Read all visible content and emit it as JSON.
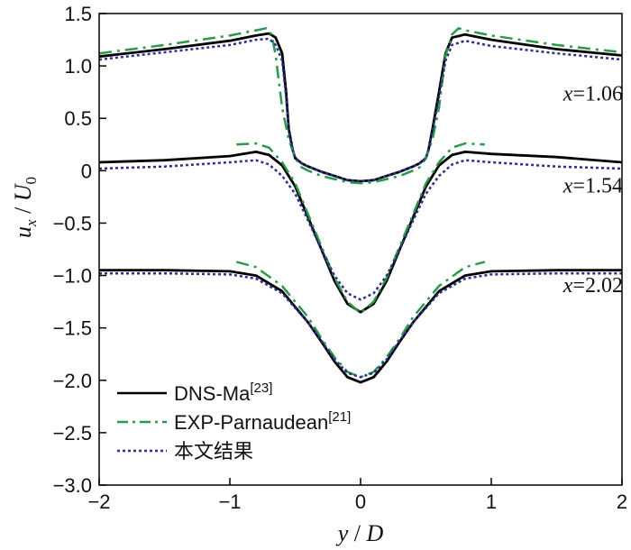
{
  "chart_data": {
    "type": "line",
    "title": "",
    "xlabel": "y/D",
    "ylabel": "u_x/U_0",
    "xlim": [
      -2,
      2
    ],
    "ylim": [
      -3.0,
      1.5
    ],
    "xticks": [
      -2,
      -1,
      0,
      1,
      2
    ],
    "xtick_labels": [
      "−2",
      "−1",
      "0",
      "1",
      "2"
    ],
    "yticks": [
      1.5,
      1.0,
      0.5,
      0,
      -0.5,
      -1.0,
      -1.5,
      -2.0,
      -2.5,
      -3.0
    ],
    "ytick_labels": [
      "1.5",
      "1.0",
      "0.5",
      "0",
      "−0.5",
      "−1.0",
      "−1.5",
      "−2.0",
      "−2.5",
      "−3.0"
    ],
    "grid": false,
    "legend_position": "bottom-left",
    "annotations": [
      {
        "text": "x=1.06",
        "x": 1.55,
        "y": 0.67
      },
      {
        "text": "x=1.54",
        "x": 1.55,
        "y": -0.21
      },
      {
        "text": "x=2.02",
        "x": 1.55,
        "y": -1.16
      }
    ],
    "series": [
      {
        "name": "DNS-Ma[23]",
        "style": "solid",
        "color": "#000000",
        "group": "x=1.06",
        "x": [
          -2.0,
          -1.5,
          -1.0,
          -0.8,
          -0.7,
          -0.65,
          -0.6,
          -0.57,
          -0.55,
          -0.52,
          -0.5,
          -0.45,
          -0.4,
          -0.3,
          -0.2,
          -0.1,
          0.0,
          0.1,
          0.2,
          0.3,
          0.4,
          0.45,
          0.5,
          0.52,
          0.55,
          0.6,
          0.65,
          0.7,
          0.8,
          1.0,
          1.5,
          2.0
        ],
        "y": [
          1.09,
          1.16,
          1.24,
          1.29,
          1.31,
          1.27,
          1.12,
          0.75,
          0.4,
          0.2,
          0.12,
          0.07,
          0.04,
          -0.01,
          -0.05,
          -0.09,
          -0.1,
          -0.09,
          -0.05,
          -0.01,
          0.04,
          0.07,
          0.12,
          0.2,
          0.4,
          0.75,
          1.12,
          1.27,
          1.3,
          1.25,
          1.16,
          1.1
        ]
      },
      {
        "name": "EXP-Parnaudean[21]",
        "style": "dashdot",
        "color": "#2a9a4a",
        "group": "x=1.06",
        "x": [
          -2.0,
          -1.5,
          -1.0,
          -0.8,
          -0.72,
          -0.68,
          -0.65,
          -0.6,
          -0.55,
          -0.5,
          -0.45,
          -0.4,
          -0.3,
          -0.2,
          -0.1,
          0.0,
          0.1,
          0.2,
          0.3,
          0.4,
          0.45,
          0.5,
          0.55,
          0.6,
          0.65,
          0.7,
          0.75,
          0.8,
          1.0,
          1.5,
          2.0
        ],
        "y": [
          1.12,
          1.2,
          1.29,
          1.34,
          1.36,
          1.3,
          1.1,
          0.6,
          0.3,
          0.12,
          0.03,
          0.0,
          -0.05,
          -0.08,
          -0.11,
          -0.12,
          -0.11,
          -0.08,
          -0.05,
          0.0,
          0.03,
          0.12,
          0.3,
          0.6,
          1.1,
          1.3,
          1.36,
          1.34,
          1.29,
          1.2,
          1.13
        ]
      },
      {
        "name": "本文结果",
        "style": "dotted",
        "color": "#2b2f8f",
        "group": "x=1.06",
        "x": [
          -2.0,
          -1.5,
          -1.0,
          -0.8,
          -0.7,
          -0.65,
          -0.6,
          -0.57,
          -0.55,
          -0.52,
          -0.5,
          -0.45,
          -0.4,
          -0.3,
          -0.2,
          -0.1,
          0.0,
          0.1,
          0.2,
          0.3,
          0.4,
          0.45,
          0.5,
          0.52,
          0.55,
          0.6,
          0.65,
          0.7,
          0.8,
          1.0,
          1.5,
          2.0
        ],
        "y": [
          1.06,
          1.13,
          1.2,
          1.25,
          1.26,
          1.2,
          1.05,
          0.7,
          0.38,
          0.2,
          0.12,
          0.07,
          0.04,
          -0.01,
          -0.05,
          -0.09,
          -0.1,
          -0.09,
          -0.05,
          -0.01,
          0.04,
          0.07,
          0.12,
          0.2,
          0.38,
          0.7,
          1.05,
          1.2,
          1.24,
          1.19,
          1.12,
          1.06
        ]
      },
      {
        "name": "DNS-Ma[23]",
        "style": "solid",
        "color": "#000000",
        "group": "x=1.54",
        "x": [
          -2.0,
          -1.5,
          -1.0,
          -0.8,
          -0.7,
          -0.6,
          -0.5,
          -0.4,
          -0.3,
          -0.2,
          -0.1,
          0.0,
          0.1,
          0.2,
          0.3,
          0.4,
          0.5,
          0.6,
          0.7,
          0.8,
          1.0,
          1.5,
          2.0
        ],
        "y": [
          0.08,
          0.1,
          0.14,
          0.18,
          0.15,
          0.05,
          -0.15,
          -0.45,
          -0.75,
          -1.05,
          -1.27,
          -1.35,
          -1.27,
          -1.05,
          -0.75,
          -0.45,
          -0.15,
          0.05,
          0.15,
          0.18,
          0.16,
          0.13,
          0.08
        ]
      },
      {
        "name": "EXP-Parnaudean[21]",
        "style": "dashdot",
        "color": "#2a9a4a",
        "group": "x=1.54",
        "x": [
          -0.95,
          -0.8,
          -0.7,
          -0.6,
          -0.5,
          -0.4,
          -0.3,
          -0.2,
          -0.1,
          0.0,
          0.1,
          0.2,
          0.3,
          0.4,
          0.5,
          0.6,
          0.7,
          0.8,
          0.95
        ],
        "y": [
          0.25,
          0.26,
          0.22,
          0.08,
          -0.12,
          -0.42,
          -0.72,
          -1.02,
          -1.25,
          -1.36,
          -1.25,
          -1.02,
          -0.72,
          -0.42,
          -0.12,
          0.08,
          0.22,
          0.26,
          0.25
        ]
      },
      {
        "name": "本文结果",
        "style": "dotted",
        "color": "#2b2f8f",
        "group": "x=1.54",
        "x": [
          -2.0,
          -1.5,
          -1.0,
          -0.8,
          -0.7,
          -0.6,
          -0.5,
          -0.4,
          -0.3,
          -0.2,
          -0.1,
          0.0,
          0.1,
          0.2,
          0.3,
          0.4,
          0.5,
          0.6,
          0.7,
          0.8,
          1.0,
          1.5,
          2.0
        ],
        "y": [
          0.02,
          0.04,
          0.08,
          0.1,
          0.06,
          -0.05,
          -0.22,
          -0.48,
          -0.75,
          -1.0,
          -1.17,
          -1.23,
          -1.17,
          -1.0,
          -0.75,
          -0.48,
          -0.22,
          -0.05,
          0.06,
          0.1,
          0.08,
          0.04,
          0.02
        ]
      },
      {
        "name": "DNS-Ma[23]",
        "style": "solid",
        "color": "#000000",
        "group": "x=2.02",
        "x": [
          -2.0,
          -1.5,
          -1.0,
          -0.8,
          -0.6,
          -0.4,
          -0.3,
          -0.2,
          -0.1,
          0.0,
          0.1,
          0.2,
          0.3,
          0.4,
          0.6,
          0.8,
          1.0,
          1.5,
          2.0
        ],
        "y": [
          -0.95,
          -0.95,
          -0.96,
          -1.0,
          -1.15,
          -1.45,
          -1.63,
          -1.82,
          -1.97,
          -2.02,
          -1.97,
          -1.82,
          -1.63,
          -1.45,
          -1.15,
          -1.0,
          -0.96,
          -0.95,
          -0.95
        ]
      },
      {
        "name": "EXP-Parnaudean[21]",
        "style": "dashdot",
        "color": "#2a9a4a",
        "group": "x=2.02",
        "x": [
          -0.95,
          -0.8,
          -0.6,
          -0.4,
          -0.3,
          -0.2,
          -0.1,
          0.0,
          0.1,
          0.2,
          0.3,
          0.4,
          0.6,
          0.8,
          0.95
        ],
        "y": [
          -0.87,
          -0.92,
          -1.1,
          -1.4,
          -1.6,
          -1.78,
          -1.92,
          -1.97,
          -1.92,
          -1.78,
          -1.6,
          -1.4,
          -1.1,
          -0.92,
          -0.87
        ]
      },
      {
        "name": "本文结果",
        "style": "dotted",
        "color": "#2b2f8f",
        "group": "x=2.02",
        "x": [
          -2.0,
          -1.5,
          -1.0,
          -0.8,
          -0.6,
          -0.4,
          -0.3,
          -0.2,
          -0.1,
          0.0,
          0.1,
          0.2,
          0.3,
          0.4,
          0.6,
          0.8,
          1.0,
          1.5,
          2.0
        ],
        "y": [
          -0.98,
          -0.98,
          -0.99,
          -1.03,
          -1.17,
          -1.45,
          -1.62,
          -1.8,
          -1.93,
          -1.97,
          -1.93,
          -1.8,
          -1.62,
          -1.45,
          -1.17,
          -1.03,
          -0.99,
          -0.98,
          -0.98
        ]
      }
    ],
    "legend": [
      {
        "label": "DNS-Ma",
        "ref": "[23]",
        "style": "solid",
        "color": "#000000"
      },
      {
        "label": "EXP-Parnaudean",
        "ref": "[21]",
        "style": "dashdot",
        "color": "#2a9a4a"
      },
      {
        "label": "本文结果",
        "ref": "",
        "style": "dotted",
        "color": "#2b2f8f"
      }
    ]
  }
}
